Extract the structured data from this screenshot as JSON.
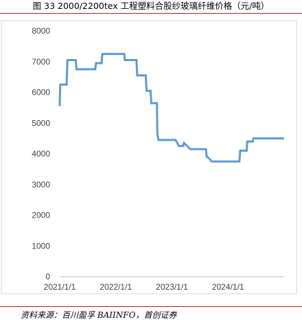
{
  "header": {
    "title": "图 33 2000/2200tex 工程塑料合股纱玻璃纤维价格（元/吨）"
  },
  "footer": {
    "source": "资料来源：百川盈孚 BAIINFO，首创证券"
  },
  "chart_data": {
    "type": "line",
    "title": "",
    "xlabel": "",
    "ylabel": "",
    "ylim": [
      0,
      8000
    ],
    "yticks": [
      0,
      1000,
      2000,
      3000,
      4000,
      5000,
      6000,
      7000,
      8000
    ],
    "xticks": [
      "2021/1/1",
      "2022/1/1",
      "2023/1/1",
      "2024/1/1"
    ],
    "xlim": [
      "2021/1/1",
      "2024/12/31"
    ],
    "grid": false,
    "line_color": "#5b9bd5",
    "series": [
      {
        "values": [
          [
            "2021-01-01",
            5550
          ],
          [
            "2021-01-04",
            6250
          ],
          [
            "2021-02-15",
            6250
          ],
          [
            "2021-02-20",
            7050
          ],
          [
            "2021-04-15",
            7050
          ],
          [
            "2021-04-20",
            6750
          ],
          [
            "2021-08-20",
            6750
          ],
          [
            "2021-08-25",
            6950
          ],
          [
            "2021-10-01",
            6950
          ],
          [
            "2021-10-05",
            7250
          ],
          [
            "2022-02-25",
            7250
          ],
          [
            "2022-03-01",
            7050
          ],
          [
            "2022-05-15",
            7050
          ],
          [
            "2022-05-20",
            6550
          ],
          [
            "2022-07-15",
            6550
          ],
          [
            "2022-07-20",
            6050
          ],
          [
            "2022-08-15",
            6050
          ],
          [
            "2022-08-20",
            5650
          ],
          [
            "2022-09-25",
            5650
          ],
          [
            "2022-09-28",
            4650
          ],
          [
            "2022-10-05",
            4450
          ],
          [
            "2023-01-25",
            4450
          ],
          [
            "2023-02-05",
            4350
          ],
          [
            "2023-02-15",
            4250
          ],
          [
            "2023-03-15",
            4250
          ],
          [
            "2023-03-20",
            4350
          ],
          [
            "2023-04-10",
            4250
          ],
          [
            "2023-05-01",
            4150
          ],
          [
            "2023-08-10",
            4150
          ],
          [
            "2023-08-15",
            3900
          ],
          [
            "2023-09-01",
            3850
          ],
          [
            "2023-09-15",
            3750
          ],
          [
            "2024-03-15",
            3750
          ],
          [
            "2024-03-20",
            4100
          ],
          [
            "2024-05-01",
            4100
          ],
          [
            "2024-05-05",
            4400
          ],
          [
            "2024-06-10",
            4400
          ],
          [
            "2024-06-15",
            4500
          ],
          [
            "2024-12-31",
            4500
          ]
        ]
      }
    ]
  }
}
